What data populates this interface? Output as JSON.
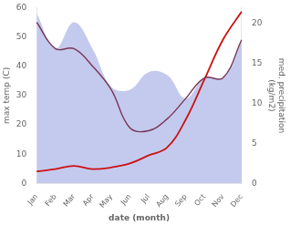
{
  "chart_data": {
    "type": "line",
    "categories": [
      "Jan",
      "Feb",
      "Mar",
      "Apr",
      "May",
      "Jun",
      "Jul",
      "Aug",
      "Sep",
      "Oct",
      "Nov",
      "Dec"
    ],
    "series": [
      {
        "type": "area",
        "color": "#b0b8e8",
        "values": [
          58,
          46,
          55,
          46,
          33,
          32,
          38,
          37,
          29,
          36,
          36,
          49
        ]
      },
      {
        "type": "line",
        "color": "#7a3555",
        "values": [
          55,
          46,
          46,
          40,
          32,
          19,
          18,
          22,
          29,
          36,
          36,
          49
        ]
      },
      {
        "type": "line",
        "color": "#cc1111",
        "axis": "y2",
        "values": [
          1.5,
          1.8,
          2.2,
          1.8,
          2.0,
          2.5,
          3.5,
          4.5,
          8.0,
          13.0,
          18.0,
          21.5
        ]
      }
    ],
    "xlabel": "date (month)",
    "ylabel": "max temp (C)",
    "y2label": "med. precipitation\n(kg/m2)",
    "ylim": [
      0,
      60
    ],
    "yticks": [
      0,
      10,
      20,
      30,
      40,
      50,
      60
    ],
    "y2lim": [
      0,
      22
    ],
    "y2ticks": [
      0,
      5,
      10,
      15,
      20
    ],
    "grid": false
  }
}
